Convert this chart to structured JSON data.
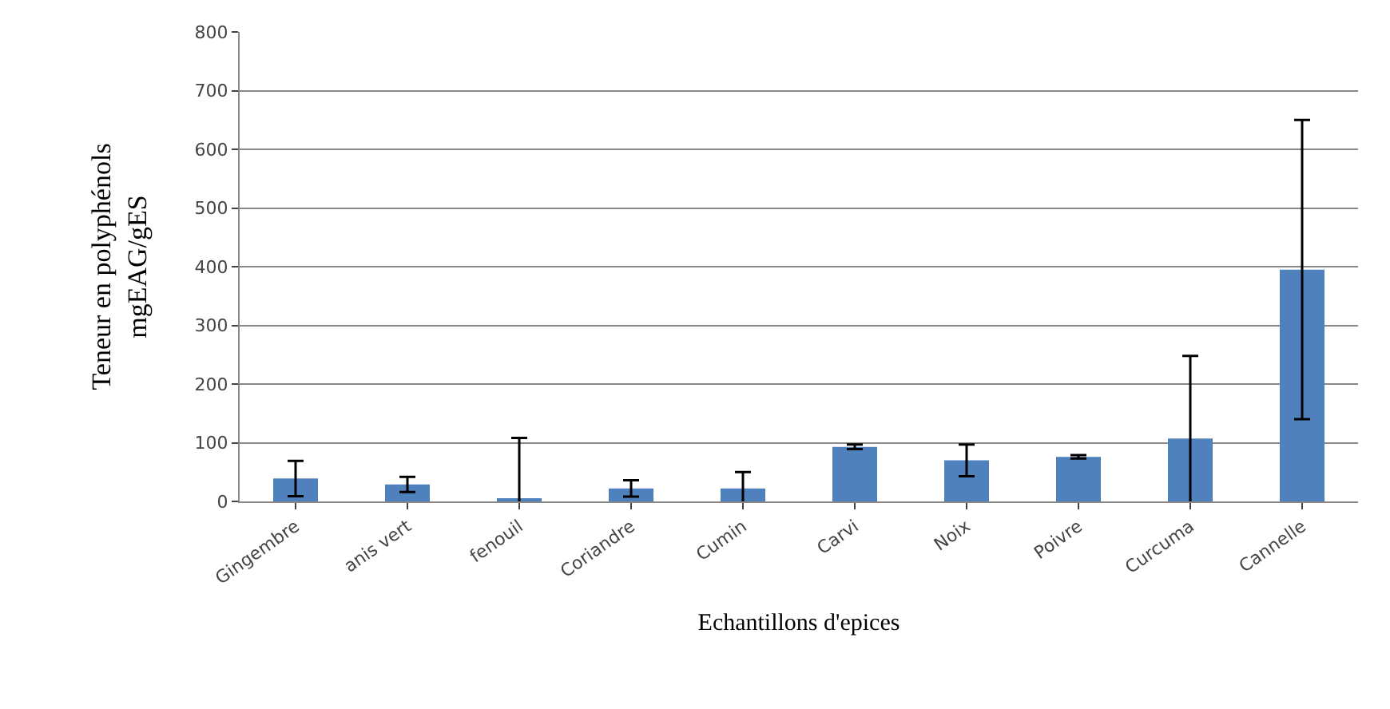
{
  "chart_data": {
    "type": "bar",
    "xlabel": "Echantillons d'epices",
    "ylabel": "Teneur en polyphénols\nmgEAG/gES",
    "categories": [
      "Gingembre",
      "anis vert",
      "fenouil",
      "Coriandre",
      "Cumin",
      "Carvi",
      "Noix",
      "Poivre",
      "Curcuma",
      "Cannelle"
    ],
    "values": [
      39,
      29,
      5,
      22,
      22,
      93,
      70,
      76,
      107,
      395
    ],
    "errors": [
      30,
      13,
      103,
      14,
      28,
      4,
      27,
      3,
      141,
      255
    ],
    "color": "#4f81bd",
    "ylim": [
      0,
      800
    ],
    "yticks": [
      0,
      100,
      200,
      300,
      400,
      500,
      600,
      700,
      800
    ],
    "grid": "y"
  }
}
